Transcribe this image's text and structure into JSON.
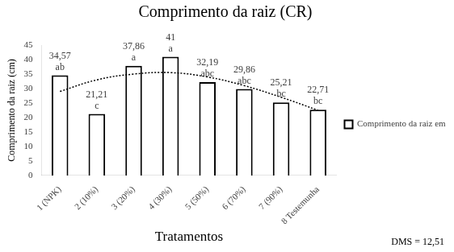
{
  "chart_data": {
    "type": "bar",
    "title": "Comprimento da raiz (CR)",
    "x_label": "Tratamentos",
    "y_label": "Comprimento da raiz (cm)",
    "annotation": "DMS = 12,51",
    "categories": [
      "1 (NPK)",
      "2 (10%)",
      "3 (20%)",
      "4 (30%)",
      "5 (50%)",
      "6 (70%)",
      "7 (90%)",
      "8 Testemunha"
    ],
    "series": [
      {
        "name": "Comprimento da raiz em cm",
        "type": "bar",
        "color": "#ffffff",
        "values": [
          34.57,
          21.21,
          37.86,
          41,
          32.19,
          29.86,
          25.21,
          22.71
        ],
        "value_labels": [
          "34,57",
          "21,21",
          "37,86",
          "41",
          "32,19",
          "29,86",
          "25,21",
          "22,71"
        ],
        "letters": [
          "ab",
          "c",
          "a",
          "a",
          "abc",
          "abc",
          "bc",
          "bc"
        ]
      },
      {
        "type": "line",
        "line_style": "dotted",
        "color": "#000000",
        "values": [
          29,
          33,
          35,
          35.5,
          34,
          31,
          27,
          22.5
        ]
      }
    ],
    "ylim": [
      0,
      45
    ],
    "yticks": [
      0,
      5,
      10,
      15,
      20,
      25,
      30,
      35,
      40,
      45
    ],
    "grid": false,
    "legend": "right",
    "data_labels": true
  }
}
